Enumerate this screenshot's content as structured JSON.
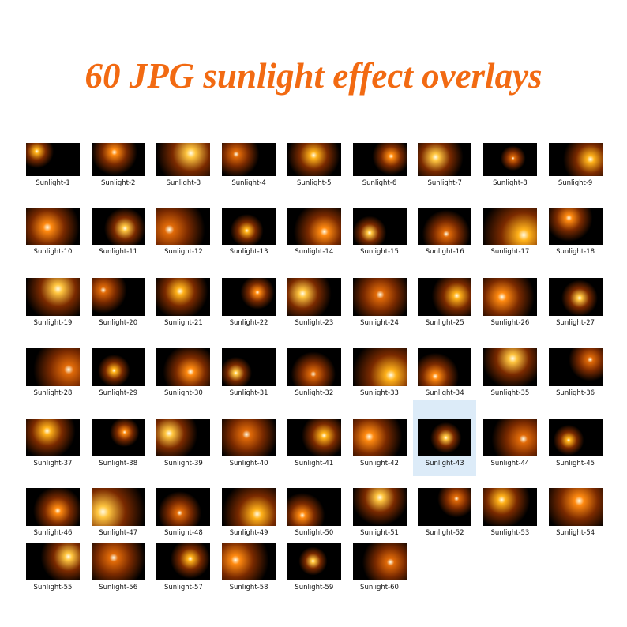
{
  "header": {
    "title": "60 JPG sunlight effect overlays"
  },
  "items": [
    {
      "label": "Sunlight-1"
    },
    {
      "label": "Sunlight-2"
    },
    {
      "label": "Sunlight-3"
    },
    {
      "label": "Sunlight-4"
    },
    {
      "label": "Sunlight-5"
    },
    {
      "label": "Sunlight-6"
    },
    {
      "label": "Sunlight-7"
    },
    {
      "label": "Sunlight-8"
    },
    {
      "label": "Sunlight-9"
    },
    {
      "label": "Sunlight-10"
    },
    {
      "label": "Sunlight-11"
    },
    {
      "label": "Sunlight-12"
    },
    {
      "label": "Sunlight-13"
    },
    {
      "label": "Sunlight-14"
    },
    {
      "label": "Sunlight-15"
    },
    {
      "label": "Sunlight-16"
    },
    {
      "label": "Sunlight-17"
    },
    {
      "label": "Sunlight-18"
    },
    {
      "label": "Sunlight-19"
    },
    {
      "label": "Sunlight-20"
    },
    {
      "label": "Sunlight-21"
    },
    {
      "label": "Sunlight-22"
    },
    {
      "label": "Sunlight-23"
    },
    {
      "label": "Sunlight-24"
    },
    {
      "label": "Sunlight-25"
    },
    {
      "label": "Sunlight-26"
    },
    {
      "label": "Sunlight-27"
    },
    {
      "label": "Sunlight-28"
    },
    {
      "label": "Sunlight-29"
    },
    {
      "label": "Sunlight-30"
    },
    {
      "label": "Sunlight-31"
    },
    {
      "label": "Sunlight-32"
    },
    {
      "label": "Sunlight-33"
    },
    {
      "label": "Sunlight-34"
    },
    {
      "label": "Sunlight-35"
    },
    {
      "label": "Sunlight-36"
    },
    {
      "label": "Sunlight-37"
    },
    {
      "label": "Sunlight-38"
    },
    {
      "label": "Sunlight-39"
    },
    {
      "label": "Sunlight-40"
    },
    {
      "label": "Sunlight-41"
    },
    {
      "label": "Sunlight-42"
    },
    {
      "label": "Sunlight-43",
      "selected": true
    },
    {
      "label": "Sunlight-44"
    },
    {
      "label": "Sunlight-45"
    },
    {
      "label": "Sunlight-46"
    },
    {
      "label": "Sunlight-47"
    },
    {
      "label": "Sunlight-48"
    },
    {
      "label": "Sunlight-49"
    },
    {
      "label": "Sunlight-50"
    },
    {
      "label": "Sunlight-51"
    },
    {
      "label": "Sunlight-52"
    },
    {
      "label": "Sunlight-53"
    },
    {
      "label": "Sunlight-54"
    },
    {
      "label": "Sunlight-55"
    },
    {
      "label": "Sunlight-56"
    },
    {
      "label": "Sunlight-57"
    },
    {
      "label": "Sunlight-58"
    },
    {
      "label": "Sunlight-59"
    },
    {
      "label": "Sunlight-60"
    }
  ]
}
